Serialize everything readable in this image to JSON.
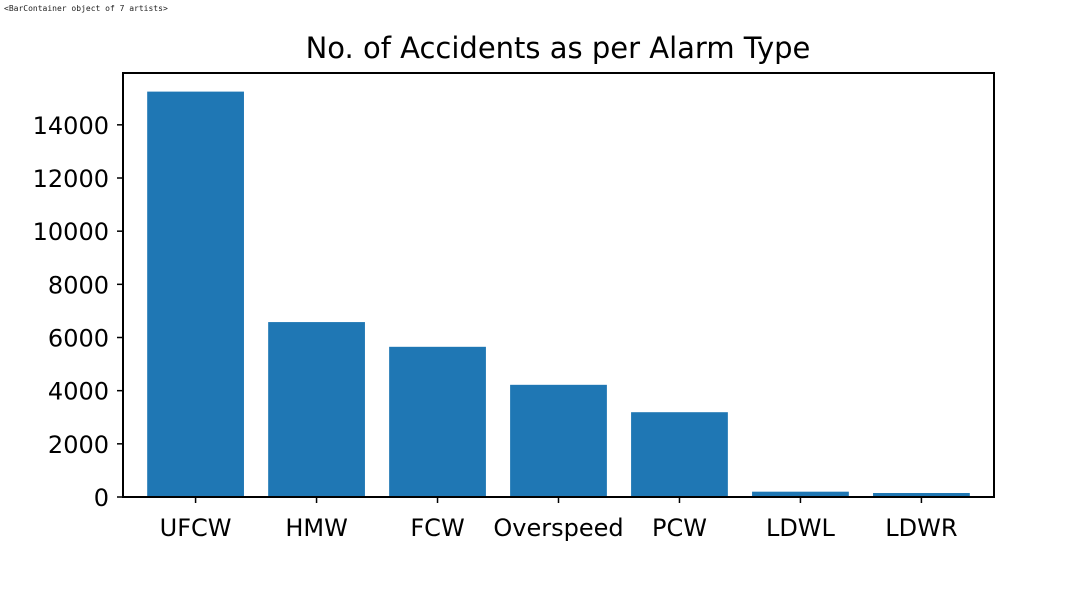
{
  "console_output": "<BarContainer object of 7 artists>",
  "chart_data": {
    "type": "bar",
    "title": "No. of Accidents as per Alarm Type",
    "xlabel": "",
    "ylabel": "",
    "categories": [
      "UFCW",
      "HMW",
      "FCW",
      "Overspeed",
      "PCW",
      "LDWL",
      "LDWR"
    ],
    "values": [
      15250,
      6580,
      5650,
      4220,
      3190,
      200,
      150
    ],
    "ylim": [
      0,
      15950
    ],
    "yticks": [
      0,
      2000,
      4000,
      6000,
      8000,
      10000,
      12000,
      14000
    ],
    "grid": false,
    "legend": "none",
    "bar_color": "#1f77b4"
  }
}
